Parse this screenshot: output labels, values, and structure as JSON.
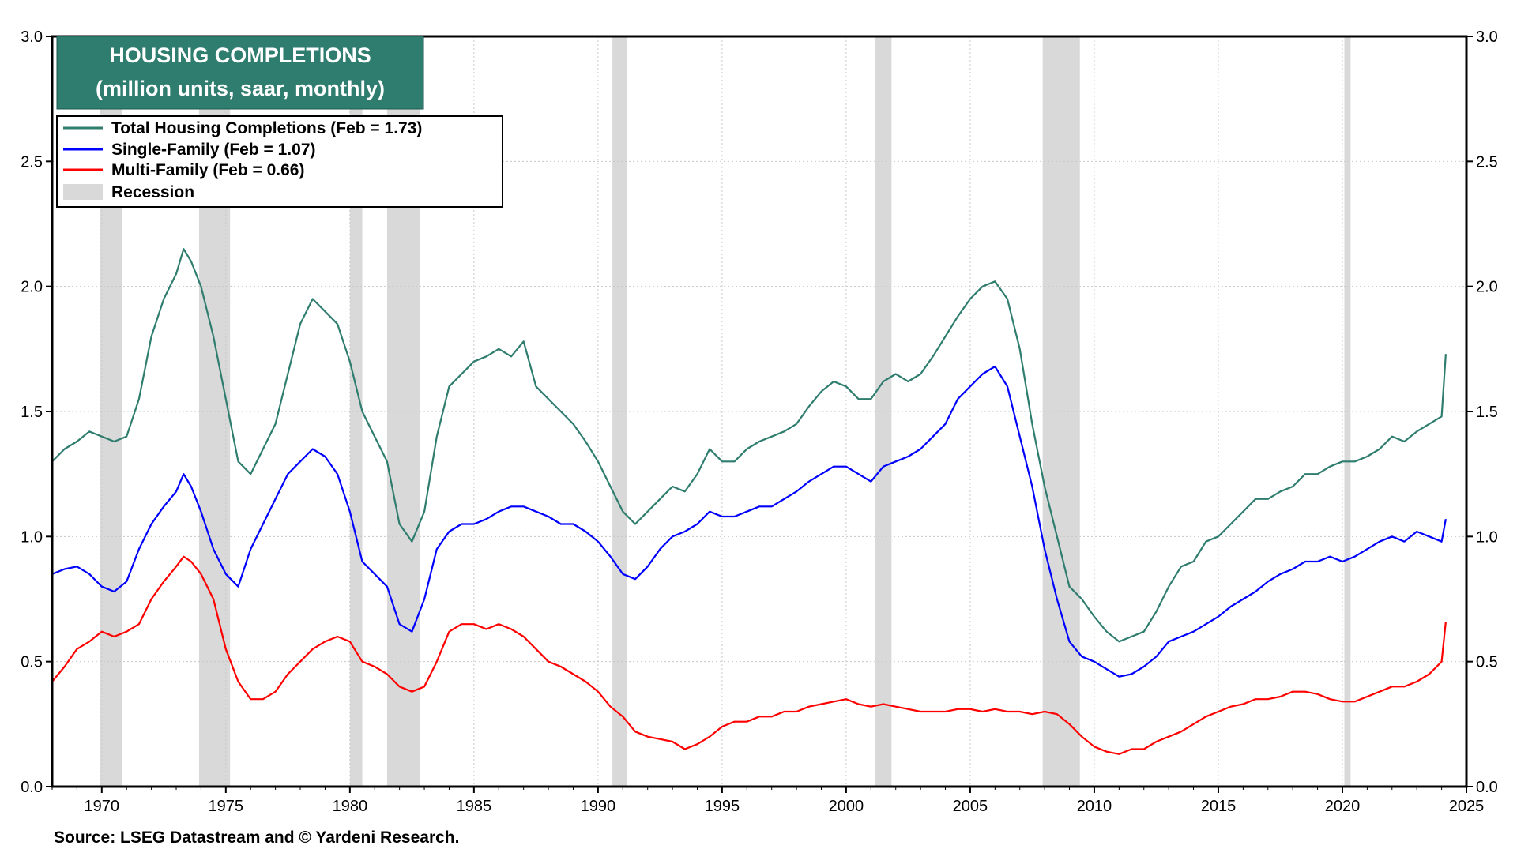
{
  "chart_data": {
    "type": "line",
    "title": "HOUSING COMPLETIONS",
    "subtitle": "(million units, saar, monthly)",
    "source": "Source: LSEG Datastream and © Yardeni Research.",
    "xlim": [
      1968.0,
      2025.0
    ],
    "ylim": [
      0.0,
      3.0
    ],
    "x_ticks": [
      "1970",
      "1975",
      "1980",
      "1985",
      "1990",
      "1995",
      "2000",
      "2005",
      "2010",
      "2015",
      "2020",
      "2025"
    ],
    "y_ticks_left": [
      "0.0",
      "0.5",
      "1.0",
      "1.5",
      "2.0",
      "2.5",
      "3.0"
    ],
    "y_ticks_right": [
      "0.0",
      "0.5",
      "1.0",
      "1.5",
      "2.0",
      "2.5",
      "3.0"
    ],
    "grid": true,
    "legend_position": "top-left",
    "recession_label": "Recession",
    "recession_color": "#d9d9d9",
    "recessions": [
      [
        1969.92,
        1970.83
      ],
      [
        1973.92,
        1975.17
      ],
      [
        1980.0,
        1980.5
      ],
      [
        1981.5,
        1982.83
      ],
      [
        1990.58,
        1991.17
      ],
      [
        2001.17,
        2001.83
      ],
      [
        2007.92,
        2009.42
      ],
      [
        2020.08,
        2020.33
      ]
    ],
    "series": [
      {
        "name": "Total Housing Completions (Feb = 1.73)",
        "color": "#2e7d6e",
        "x": [
          1968.0,
          1968.5,
          1969.0,
          1969.5,
          1970.0,
          1970.5,
          1971.0,
          1971.5,
          1972.0,
          1972.5,
          1973.0,
          1973.3,
          1973.6,
          1974.0,
          1974.5,
          1975.0,
          1975.5,
          1976.0,
          1976.5,
          1977.0,
          1977.5,
          1978.0,
          1978.5,
          1979.0,
          1979.5,
          1980.0,
          1980.5,
          1981.0,
          1981.5,
          1982.0,
          1982.5,
          1983.0,
          1983.5,
          1984.0,
          1984.5,
          1985.0,
          1985.5,
          1986.0,
          1986.5,
          1987.0,
          1987.5,
          1988.0,
          1988.5,
          1989.0,
          1989.5,
          1990.0,
          1990.5,
          1991.0,
          1991.5,
          1992.0,
          1992.5,
          1993.0,
          1993.5,
          1994.0,
          1994.5,
          1995.0,
          1995.5,
          1996.0,
          1996.5,
          1997.0,
          1997.5,
          1998.0,
          1998.5,
          1999.0,
          1999.5,
          2000.0,
          2000.5,
          2001.0,
          2001.5,
          2002.0,
          2002.5,
          2003.0,
          2003.5,
          2004.0,
          2004.5,
          2005.0,
          2005.5,
          2006.0,
          2006.5,
          2007.0,
          2007.5,
          2008.0,
          2008.5,
          2009.0,
          2009.5,
          2010.0,
          2010.5,
          2011.0,
          2011.5,
          2012.0,
          2012.5,
          2013.0,
          2013.5,
          2014.0,
          2014.5,
          2015.0,
          2015.5,
          2016.0,
          2016.5,
          2017.0,
          2017.5,
          2018.0,
          2018.5,
          2019.0,
          2019.5,
          2020.0,
          2020.5,
          2021.0,
          2021.5,
          2022.0,
          2022.5,
          2023.0,
          2023.5,
          2024.0,
          2024.17
        ],
        "values": [
          1.3,
          1.35,
          1.38,
          1.42,
          1.4,
          1.38,
          1.4,
          1.55,
          1.8,
          1.95,
          2.05,
          2.15,
          2.1,
          2.0,
          1.8,
          1.55,
          1.3,
          1.25,
          1.35,
          1.45,
          1.65,
          1.85,
          1.95,
          1.9,
          1.85,
          1.7,
          1.5,
          1.4,
          1.3,
          1.05,
          0.98,
          1.1,
          1.4,
          1.6,
          1.65,
          1.7,
          1.72,
          1.75,
          1.72,
          1.78,
          1.6,
          1.55,
          1.5,
          1.45,
          1.38,
          1.3,
          1.2,
          1.1,
          1.05,
          1.1,
          1.15,
          1.2,
          1.18,
          1.25,
          1.35,
          1.3,
          1.3,
          1.35,
          1.38,
          1.4,
          1.42,
          1.45,
          1.52,
          1.58,
          1.62,
          1.6,
          1.55,
          1.55,
          1.62,
          1.65,
          1.62,
          1.65,
          1.72,
          1.8,
          1.88,
          1.95,
          2.0,
          2.02,
          1.95,
          1.75,
          1.45,
          1.2,
          1.0,
          0.8,
          0.75,
          0.68,
          0.62,
          0.58,
          0.6,
          0.62,
          0.7,
          0.8,
          0.88,
          0.9,
          0.98,
          1.0,
          1.05,
          1.1,
          1.15,
          1.15,
          1.18,
          1.2,
          1.25,
          1.25,
          1.28,
          1.3,
          1.3,
          1.32,
          1.35,
          1.4,
          1.38,
          1.42,
          1.45,
          1.48,
          1.73
        ]
      },
      {
        "name": "Single-Family (Feb = 1.07)",
        "color": "#0000ff",
        "x": [
          1968.0,
          1968.5,
          1969.0,
          1969.5,
          1970.0,
          1970.5,
          1971.0,
          1971.5,
          1972.0,
          1972.5,
          1973.0,
          1973.3,
          1973.6,
          1974.0,
          1974.5,
          1975.0,
          1975.5,
          1976.0,
          1976.5,
          1977.0,
          1977.5,
          1978.0,
          1978.5,
          1979.0,
          1979.5,
          1980.0,
          1980.5,
          1981.0,
          1981.5,
          1982.0,
          1982.5,
          1983.0,
          1983.5,
          1984.0,
          1984.5,
          1985.0,
          1985.5,
          1986.0,
          1986.5,
          1987.0,
          1987.5,
          1988.0,
          1988.5,
          1989.0,
          1989.5,
          1990.0,
          1990.5,
          1991.0,
          1991.5,
          1992.0,
          1992.5,
          1993.0,
          1993.5,
          1994.0,
          1994.5,
          1995.0,
          1995.5,
          1996.0,
          1996.5,
          1997.0,
          1997.5,
          1998.0,
          1998.5,
          1999.0,
          1999.5,
          2000.0,
          2000.5,
          2001.0,
          2001.5,
          2002.0,
          2002.5,
          2003.0,
          2003.5,
          2004.0,
          2004.5,
          2005.0,
          2005.5,
          2006.0,
          2006.5,
          2007.0,
          2007.5,
          2008.0,
          2008.5,
          2009.0,
          2009.5,
          2010.0,
          2010.5,
          2011.0,
          2011.5,
          2012.0,
          2012.5,
          2013.0,
          2013.5,
          2014.0,
          2014.5,
          2015.0,
          2015.5,
          2016.0,
          2016.5,
          2017.0,
          2017.5,
          2018.0,
          2018.5,
          2019.0,
          2019.5,
          2020.0,
          2020.5,
          2021.0,
          2021.5,
          2022.0,
          2022.5,
          2023.0,
          2023.5,
          2024.0,
          2024.17
        ],
        "values": [
          0.85,
          0.87,
          0.88,
          0.85,
          0.8,
          0.78,
          0.82,
          0.95,
          1.05,
          1.12,
          1.18,
          1.25,
          1.2,
          1.1,
          0.95,
          0.85,
          0.8,
          0.95,
          1.05,
          1.15,
          1.25,
          1.3,
          1.35,
          1.32,
          1.25,
          1.1,
          0.9,
          0.85,
          0.8,
          0.65,
          0.62,
          0.75,
          0.95,
          1.02,
          1.05,
          1.05,
          1.07,
          1.1,
          1.12,
          1.12,
          1.1,
          1.08,
          1.05,
          1.05,
          1.02,
          0.98,
          0.92,
          0.85,
          0.83,
          0.88,
          0.95,
          1.0,
          1.02,
          1.05,
          1.1,
          1.08,
          1.08,
          1.1,
          1.12,
          1.12,
          1.15,
          1.18,
          1.22,
          1.25,
          1.28,
          1.28,
          1.25,
          1.22,
          1.28,
          1.3,
          1.32,
          1.35,
          1.4,
          1.45,
          1.55,
          1.6,
          1.65,
          1.68,
          1.6,
          1.4,
          1.2,
          0.95,
          0.75,
          0.58,
          0.52,
          0.5,
          0.47,
          0.44,
          0.45,
          0.48,
          0.52,
          0.58,
          0.6,
          0.62,
          0.65,
          0.68,
          0.72,
          0.75,
          0.78,
          0.82,
          0.85,
          0.87,
          0.9,
          0.9,
          0.92,
          0.9,
          0.92,
          0.95,
          0.98,
          1.0,
          0.98,
          1.02,
          1.0,
          0.98,
          1.07
        ]
      },
      {
        "name": "Multi-Family (Feb = 0.66)",
        "color": "#ff0000",
        "x": [
          1968.0,
          1968.5,
          1969.0,
          1969.5,
          1970.0,
          1970.5,
          1971.0,
          1971.5,
          1972.0,
          1972.5,
          1973.0,
          1973.3,
          1973.6,
          1974.0,
          1974.5,
          1975.0,
          1975.5,
          1976.0,
          1976.5,
          1977.0,
          1977.5,
          1978.0,
          1978.5,
          1979.0,
          1979.5,
          1980.0,
          1980.5,
          1981.0,
          1981.5,
          1982.0,
          1982.5,
          1983.0,
          1983.5,
          1984.0,
          1984.5,
          1985.0,
          1985.5,
          1986.0,
          1986.5,
          1987.0,
          1987.5,
          1988.0,
          1988.5,
          1989.0,
          1989.5,
          1990.0,
          1990.5,
          1991.0,
          1991.5,
          1992.0,
          1992.5,
          1993.0,
          1993.5,
          1994.0,
          1994.5,
          1995.0,
          1995.5,
          1996.0,
          1996.5,
          1997.0,
          1997.5,
          1998.0,
          1998.5,
          1999.0,
          1999.5,
          2000.0,
          2000.5,
          2001.0,
          2001.5,
          2002.0,
          2002.5,
          2003.0,
          2003.5,
          2004.0,
          2004.5,
          2005.0,
          2005.5,
          2006.0,
          2006.5,
          2007.0,
          2007.5,
          2008.0,
          2008.5,
          2009.0,
          2009.5,
          2010.0,
          2010.5,
          2011.0,
          2011.5,
          2012.0,
          2012.5,
          2013.0,
          2013.5,
          2014.0,
          2014.5,
          2015.0,
          2015.5,
          2016.0,
          2016.5,
          2017.0,
          2017.5,
          2018.0,
          2018.5,
          2019.0,
          2019.5,
          2020.0,
          2020.5,
          2021.0,
          2021.5,
          2022.0,
          2022.5,
          2023.0,
          2023.5,
          2024.0,
          2024.17
        ],
        "values": [
          0.42,
          0.48,
          0.55,
          0.58,
          0.62,
          0.6,
          0.62,
          0.65,
          0.75,
          0.82,
          0.88,
          0.92,
          0.9,
          0.85,
          0.75,
          0.55,
          0.42,
          0.35,
          0.35,
          0.38,
          0.45,
          0.5,
          0.55,
          0.58,
          0.6,
          0.58,
          0.5,
          0.48,
          0.45,
          0.4,
          0.38,
          0.4,
          0.5,
          0.62,
          0.65,
          0.65,
          0.63,
          0.65,
          0.63,
          0.6,
          0.55,
          0.5,
          0.48,
          0.45,
          0.42,
          0.38,
          0.32,
          0.28,
          0.22,
          0.2,
          0.19,
          0.18,
          0.15,
          0.17,
          0.2,
          0.24,
          0.26,
          0.26,
          0.28,
          0.28,
          0.3,
          0.3,
          0.32,
          0.33,
          0.34,
          0.35,
          0.33,
          0.32,
          0.33,
          0.32,
          0.31,
          0.3,
          0.3,
          0.3,
          0.31,
          0.31,
          0.3,
          0.31,
          0.3,
          0.3,
          0.29,
          0.3,
          0.29,
          0.25,
          0.2,
          0.16,
          0.14,
          0.13,
          0.15,
          0.15,
          0.18,
          0.2,
          0.22,
          0.25,
          0.28,
          0.3,
          0.32,
          0.33,
          0.35,
          0.35,
          0.36,
          0.38,
          0.38,
          0.37,
          0.35,
          0.34,
          0.34,
          0.36,
          0.38,
          0.4,
          0.4,
          0.42,
          0.45,
          0.5,
          0.66
        ]
      }
    ]
  }
}
